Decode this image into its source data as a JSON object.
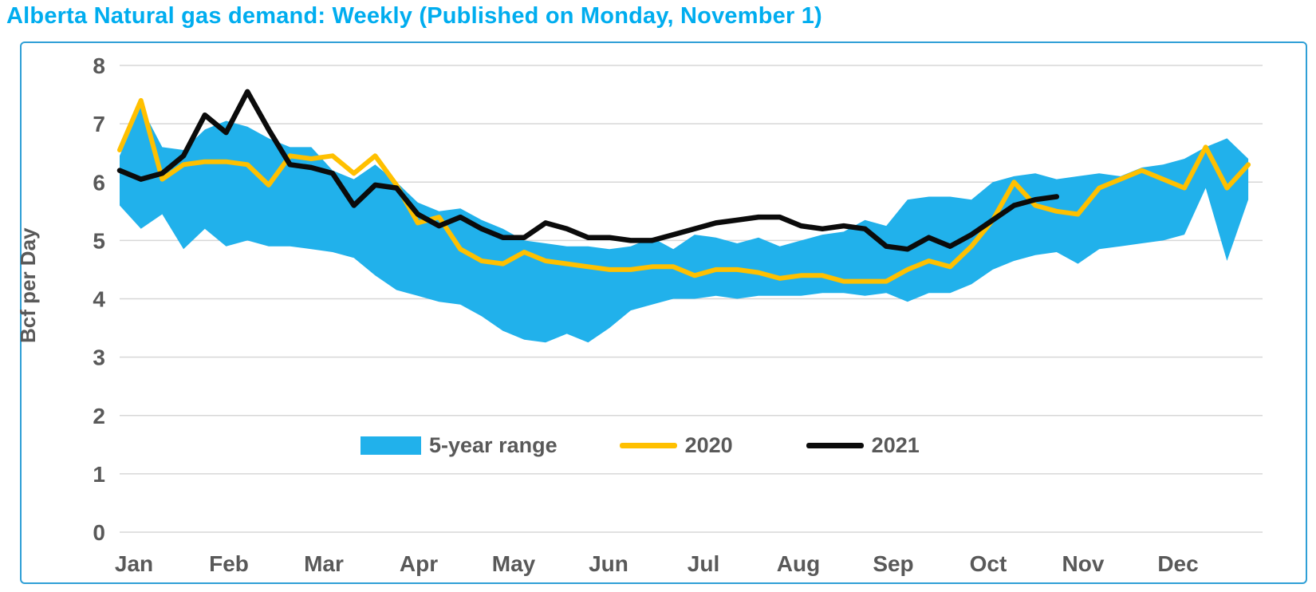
{
  "title": "Alberta Natural gas demand: Weekly (Published on Monday, November 1)",
  "chart_data": {
    "type": "area+line",
    "title": "Alberta Natural gas demand: Weekly (Published on Monday, November 1)",
    "xlabel": "",
    "ylabel": "Bcf per Day",
    "ylim": [
      0,
      8
    ],
    "yticks": [
      0,
      1,
      2,
      3,
      4,
      5,
      6,
      7,
      8
    ],
    "grid": "horizontal",
    "legend_position": "inside-lower-center",
    "months": [
      "Jan",
      "Feb",
      "Mar",
      "Apr",
      "May",
      "Jun",
      "Jul",
      "Aug",
      "Sep",
      "Oct",
      "Nov",
      "Dec"
    ],
    "x_unit": "weekly",
    "series_labels": {
      "range": "5-year range",
      "y2020": "2020",
      "y2021": "2021"
    },
    "colors": {
      "range_fill": "#21B1EB",
      "line_2020": "#FFC000",
      "line_2021": "#0B0B0B",
      "title": "#00ADEF",
      "frame_border": "#2F9FD6",
      "gridline": "#D7D7D7",
      "axis_text": "#595959"
    },
    "series": [
      {
        "name": "5-year range (top)",
        "values": [
          6.45,
          7.3,
          6.6,
          6.55,
          6.9,
          7.05,
          6.95,
          6.75,
          6.6,
          6.6,
          6.2,
          6.05,
          6.3,
          6.0,
          5.65,
          5.5,
          5.55,
          5.35,
          5.2,
          5.0,
          4.95,
          4.9,
          4.9,
          4.85,
          4.9,
          5.05,
          4.85,
          5.1,
          5.05,
          4.95,
          5.05,
          4.9,
          5.0,
          5.1,
          5.15,
          5.35,
          5.25,
          5.7,
          5.75,
          5.75,
          5.7,
          6.0,
          6.1,
          6.15,
          6.05,
          6.1,
          6.15,
          6.1,
          6.25,
          6.3,
          6.4,
          6.6,
          6.75,
          6.4
        ]
      },
      {
        "name": "5-year range (bottom)",
        "values": [
          5.6,
          5.2,
          5.45,
          4.85,
          5.2,
          4.9,
          5.0,
          4.9,
          4.9,
          4.85,
          4.8,
          4.7,
          4.4,
          4.15,
          4.05,
          3.95,
          3.9,
          3.7,
          3.45,
          3.3,
          3.25,
          3.4,
          3.25,
          3.5,
          3.8,
          3.9,
          4.0,
          4.0,
          4.05,
          4.0,
          4.05,
          4.05,
          4.05,
          4.1,
          4.1,
          4.05,
          4.1,
          3.95,
          4.1,
          4.1,
          4.25,
          4.5,
          4.65,
          4.75,
          4.8,
          4.6,
          4.85,
          4.9,
          4.95,
          5.0,
          5.1,
          5.9,
          4.65,
          5.7
        ]
      },
      {
        "name": "2020",
        "values": [
          6.55,
          7.4,
          6.05,
          6.3,
          6.35,
          6.35,
          6.3,
          5.95,
          6.45,
          6.4,
          6.45,
          6.15,
          6.45,
          5.95,
          5.3,
          5.4,
          4.85,
          4.65,
          4.6,
          4.8,
          4.65,
          4.6,
          4.55,
          4.5,
          4.5,
          4.55,
          4.55,
          4.4,
          4.5,
          4.5,
          4.45,
          4.35,
          4.4,
          4.4,
          4.3,
          4.3,
          4.3,
          4.5,
          4.65,
          4.55,
          4.9,
          5.35,
          6.0,
          5.6,
          5.5,
          5.45,
          5.9,
          6.05,
          6.2,
          6.05,
          5.9,
          6.6,
          5.9,
          6.3
        ]
      },
      {
        "name": "2021",
        "values": [
          6.2,
          6.05,
          6.15,
          6.45,
          7.15,
          6.85,
          7.55,
          6.9,
          6.3,
          6.25,
          6.15,
          5.6,
          5.95,
          5.9,
          5.45,
          5.25,
          5.4,
          5.2,
          5.05,
          5.05,
          5.3,
          5.2,
          5.05,
          5.05,
          5.0,
          5.0,
          5.1,
          5.2,
          5.3,
          5.35,
          5.4,
          5.4,
          5.25,
          5.2,
          5.25,
          5.2,
          4.9,
          4.85,
          5.05,
          4.9,
          5.1,
          5.35,
          5.6,
          5.7,
          5.75
        ]
      }
    ]
  }
}
